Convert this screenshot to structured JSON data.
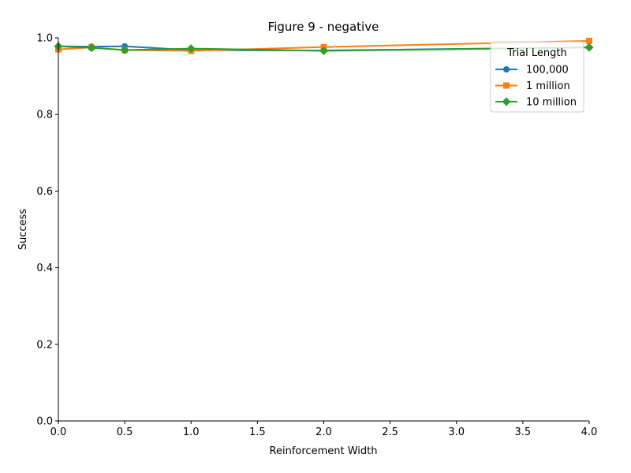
{
  "chart_data": {
    "type": "line",
    "title": "Figure 9 - negative",
    "xlabel": "Reinforcement Width",
    "ylabel": "Success",
    "xlim": [
      0.0,
      4.0
    ],
    "ylim": [
      0.0,
      1.0
    ],
    "xticks": [
      "0.0",
      "0.5",
      "1.0",
      "1.5",
      "2.0",
      "2.5",
      "3.0",
      "3.5",
      "4.0"
    ],
    "yticks": [
      "0.0",
      "0.2",
      "0.4",
      "0.6",
      "0.8",
      "1.0"
    ],
    "grid": false,
    "legend": {
      "title": "Trial Length",
      "position": "top-right"
    },
    "series": [
      {
        "name": "100,000",
        "color": "#1f77b4",
        "marker": "circle",
        "x": [
          0.0,
          0.25,
          0.5,
          1.0,
          2.0,
          4.0
        ],
        "y": [
          0.978,
          0.977,
          0.978,
          0.968,
          0.967,
          0.975
        ]
      },
      {
        "name": "1 million",
        "color": "#ff7f0e",
        "marker": "square",
        "x": [
          0.0,
          0.25,
          0.5,
          1.0,
          2.0,
          4.0
        ],
        "y": [
          0.97,
          0.975,
          0.968,
          0.966,
          0.976,
          0.992
        ]
      },
      {
        "name": "10 million",
        "color": "#2ca02c",
        "marker": "diamond",
        "x": [
          0.0,
          0.25,
          0.5,
          1.0,
          2.0,
          4.0
        ],
        "y": [
          0.978,
          0.974,
          0.968,
          0.972,
          0.966,
          0.975
        ]
      }
    ]
  }
}
